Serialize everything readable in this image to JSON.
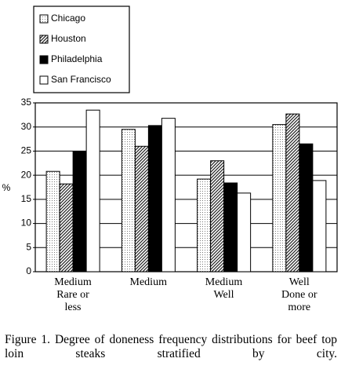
{
  "chart_data": {
    "type": "bar",
    "categories": [
      "Medium\nRare or\nless",
      "Medium",
      "Medium\nWell",
      "Well\nDone or\nmore"
    ],
    "series": [
      {
        "name": "Chicago",
        "color": "#d8d8d8",
        "pattern": "dots",
        "values": [
          20.8,
          29.5,
          19.2,
          30.5
        ]
      },
      {
        "name": "Houston",
        "color": "#555555",
        "pattern": "hatch",
        "values": [
          18.2,
          26.0,
          23.0,
          32.7
        ]
      },
      {
        "name": "Philadelphia",
        "color": "#000000",
        "pattern": "solid",
        "values": [
          24.9,
          30.3,
          18.4,
          26.5
        ]
      },
      {
        "name": "San Francisco",
        "color": "#ffffff",
        "pattern": "solid",
        "values": [
          33.5,
          31.8,
          16.3,
          18.9
        ]
      }
    ],
    "ylabel": "%",
    "ylim": [
      0,
      35
    ],
    "yticks": [
      0,
      5,
      10,
      15,
      20,
      25,
      30,
      35
    ],
    "grid": true,
    "legend": "top-left",
    "caption": "Figure 1. Degree of doneness frequency distributions for beef top loin steaks stratified by city."
  }
}
